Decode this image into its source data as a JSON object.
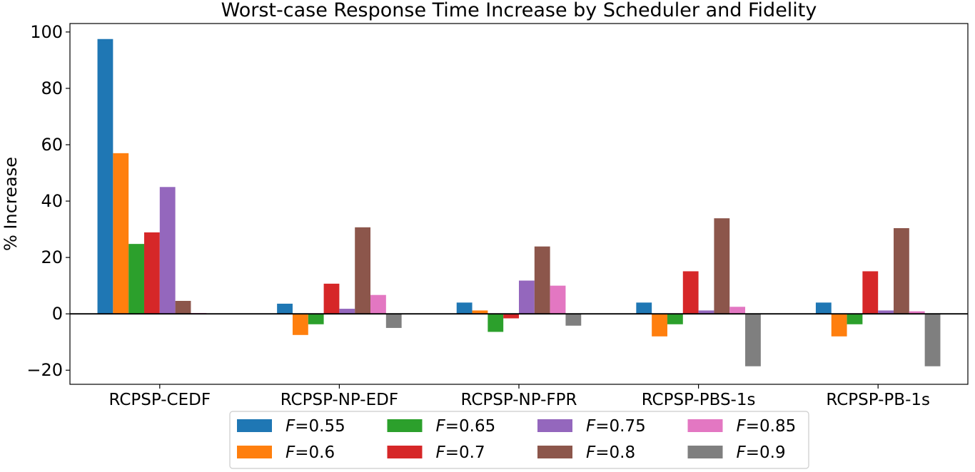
{
  "chart_data": {
    "type": "bar",
    "title": "Worst-case Response Time Increase by Scheduler and Fidelity",
    "xlabel": "",
    "ylabel": "% Increase",
    "categories": [
      "RCPSP-CEDF",
      "RCPSP-NP-EDF",
      "RCPSP-NP-FPR",
      "RCPSP-PBS-1s",
      "RCPSP-PB-1s"
    ],
    "ylim": [
      -25,
      103
    ],
    "yticks": [
      -20,
      0,
      20,
      40,
      60,
      80,
      100
    ],
    "ytick_labels": [
      "−20",
      "0",
      "20",
      "40",
      "60",
      "80",
      "100"
    ],
    "grid": false,
    "zero_line": true,
    "legend_placement": "bottom-center",
    "legend_prefix": "F",
    "series": [
      {
        "name": "=0.55",
        "color": "#1f77b4",
        "values": [
          97.5,
          3.6,
          4.0,
          4.0,
          4.0
        ]
      },
      {
        "name": "=0.6",
        "color": "#ff7f0e",
        "values": [
          57.0,
          -7.5,
          1.2,
          -8.0,
          -8.0
        ]
      },
      {
        "name": "=0.65",
        "color": "#2ca02c",
        "values": [
          24.8,
          -3.7,
          -6.4,
          -3.7,
          -3.7
        ]
      },
      {
        "name": "=0.7",
        "color": "#d62728",
        "values": [
          28.9,
          10.7,
          -1.6,
          15.1,
          15.1
        ]
      },
      {
        "name": "=0.75",
        "color": "#9467bd",
        "values": [
          45.0,
          1.8,
          11.8,
          1.2,
          1.2
        ]
      },
      {
        "name": "=0.8",
        "color": "#8c564b",
        "values": [
          4.6,
          30.7,
          23.9,
          33.9,
          30.4
        ]
      },
      {
        "name": "=0.85",
        "color": "#e377c2",
        "values": [
          0.3,
          6.7,
          10.0,
          2.5,
          0.9
        ]
      },
      {
        "name": "=0.9",
        "color": "#7f7f7f",
        "values": [
          0.1,
          -5.0,
          -4.2,
          -18.6,
          -18.6
        ]
      }
    ]
  }
}
